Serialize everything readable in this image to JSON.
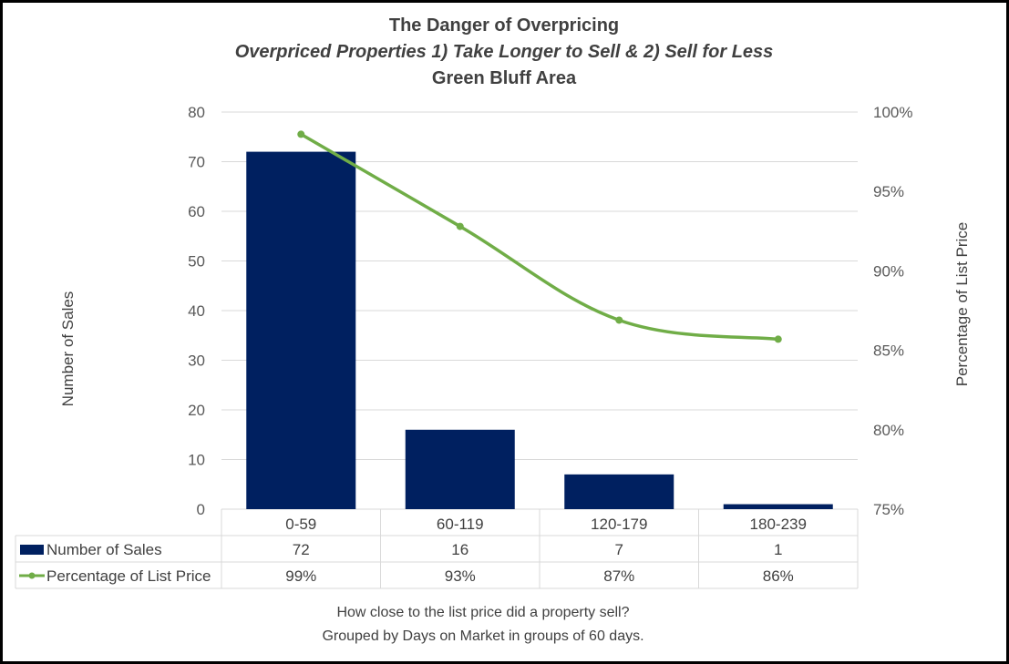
{
  "chart_data": {
    "type": "bar+line",
    "title": "The Danger of Overpricing",
    "subtitle": "Overpriced Properties 1) Take Longer to Sell & 2) Sell for Less",
    "subtitle2": "Green Bluff Area",
    "categories": [
      "0-59",
      "60-119",
      "120-179",
      "180-239"
    ],
    "series": [
      {
        "name": "Number of Sales",
        "type": "bar",
        "axis": "left",
        "values": [
          72,
          16,
          7,
          1
        ],
        "labels": [
          "72",
          "16",
          "7",
          "1"
        ],
        "color": "#002060"
      },
      {
        "name": "Percentage of List Price",
        "type": "line",
        "axis": "right",
        "values": [
          98.6,
          92.8,
          86.9,
          85.7
        ],
        "labels": [
          "99%",
          "93%",
          "87%",
          "86%"
        ],
        "color": "#70AD47"
      }
    ],
    "ylabel": "Number of Sales",
    "ylim": [
      0,
      80
    ],
    "yticks": [
      "0",
      "10",
      "20",
      "30",
      "40",
      "50",
      "60",
      "70",
      "80"
    ],
    "y2label": "Percentage of List Price",
    "y2lim": [
      75,
      100
    ],
    "y2ticks": [
      "75%",
      "80%",
      "85%",
      "90%",
      "95%",
      "100%"
    ],
    "xlabel_line1": "How close to the list price did a property sell?",
    "xlabel_line2": "Grouped by Days on Market in groups of 60 days.",
    "grid": true,
    "legend": "data-table"
  }
}
